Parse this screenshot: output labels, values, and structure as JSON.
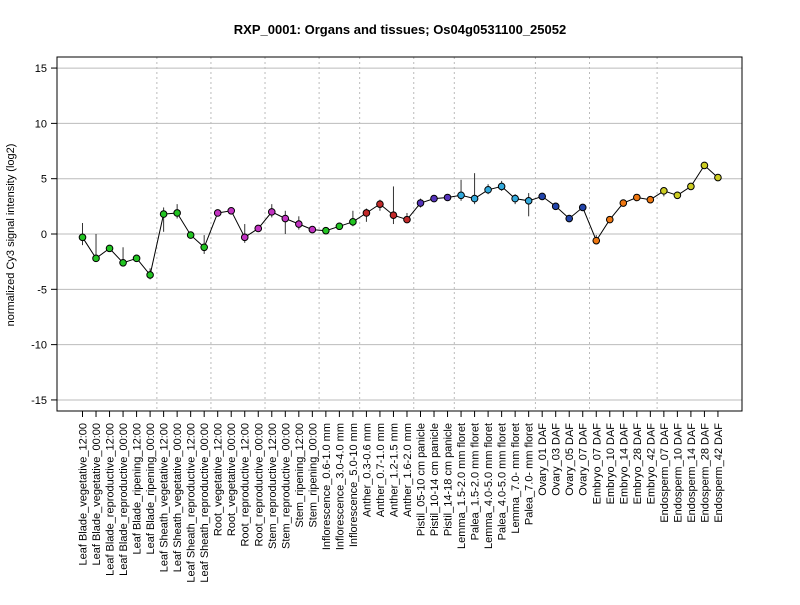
{
  "chart_data": {
    "type": "line",
    "title": "RXP_0001: Organs and tissues; Os04g0531100_25052",
    "xlabel": "",
    "ylabel": "normalized Cy3 signal intensity (log2)",
    "ylim": [
      -16,
      16
    ],
    "yticks": [
      -15,
      -10,
      -5,
      0,
      5,
      10,
      15
    ],
    "grid": true,
    "categories": [
      "Leaf Blade_vegetative_12:00",
      "Leaf Blade_vegetative_00:00",
      "Leaf Blade_reproductive_12:00",
      "Leaf Blade_reproductive_00:00",
      "Leaf Blade_ripening_12:00",
      "Leaf Blade_ripening_00:00",
      "Leaf Sheath_vegetative_12:00",
      "Leaf Sheath_vegetative_00:00",
      "Leaf Sheath_reproductive_12:00",
      "Leaf Sheath_reproductive_00:00",
      "Root_vegetative_12:00",
      "Root_vegetative_00:00",
      "Root_reproductive_12:00",
      "Root_reproductive_00:00",
      "Stem_reproductive_12:00",
      "Stem_reproductive_00:00",
      "Stem_ripening_12:00",
      "Stem_ripening_00:00",
      "Inflorescence_0.6-1.0 mm",
      "Inflorescence_3.0-4.0 mm",
      "Inflorescence_5.0-10 mm",
      "Anther_0.3-0.6 mm",
      "Anther_0.7-1.0 mm",
      "Anther_1.2-1.5 mm",
      "Anther_1.6-2.0 mm",
      "Pistil_05-10 cm panicle",
      "Pistil_10-14 cm panicle",
      "Pistil_14-18 cm panicle",
      "Lemma_1.5-2.0 mm floret",
      "Palea_1.5-2.0 mm floret",
      "Lemma_4.0-5.0 mm floret",
      "Palea_4.0-5.0 mm floret",
      "Lemma_7.0- mm floret",
      "Palea_7.0- mm floret",
      "Ovary_01 DAF",
      "Ovary_03 DAF",
      "Ovary_05 DAF",
      "Ovary_07 DAF",
      "Embryo_07 DAF",
      "Embryo_10 DAF",
      "Embryo_14 DAF",
      "Embryo_28 DAF",
      "Embryo_42 DAF",
      "Endosperm_07 DAF",
      "Endosperm_10 DAF",
      "Endosperm_14 DAF",
      "Endosperm_28 DAF",
      "Endosperm_42 DAF"
    ],
    "values": [
      -0.3,
      -2.2,
      -1.3,
      -2.6,
      -2.2,
      -3.7,
      1.8,
      1.9,
      -0.1,
      -1.2,
      1.9,
      2.1,
      -0.3,
      0.5,
      2.0,
      1.4,
      0.9,
      0.4,
      0.3,
      0.7,
      1.1,
      1.9,
      2.7,
      1.7,
      1.3,
      2.8,
      3.2,
      3.3,
      3.5,
      3.2,
      4.0,
      4.3,
      3.2,
      3.0,
      3.4,
      2.5,
      1.4,
      2.4,
      -0.6,
      1.3,
      2.8,
      3.3,
      3.1,
      3.9,
      3.5,
      4.3,
      6.2,
      5.1
    ],
    "error_low": [
      -1.0,
      -2.4,
      -1.4,
      -2.8,
      -2.3,
      -4.1,
      0.2,
      1.4,
      -0.2,
      -1.8,
      1.7,
      2.0,
      -0.8,
      0.3,
      1.5,
      0.0,
      0.4,
      0.3,
      0.2,
      0.5,
      0.7,
      1.1,
      2.1,
      0.9,
      1.0,
      2.4,
      3.0,
      3.2,
      3.0,
      2.7,
      3.6,
      3.9,
      2.7,
      1.6,
      3.1,
      2.3,
      1.2,
      2.1,
      -0.8,
      1.1,
      2.6,
      3.1,
      2.9,
      3.4,
      3.4,
      4.1,
      5.9,
      4.9
    ],
    "error_high": [
      1.0,
      0.0,
      -1.1,
      -1.2,
      -2.0,
      -3.1,
      2.4,
      2.7,
      0.0,
      -0.1,
      2.0,
      2.2,
      0.9,
      0.7,
      2.7,
      2.1,
      1.6,
      0.6,
      0.4,
      0.9,
      2.1,
      2.3,
      3.1,
      4.3,
      1.9,
      3.2,
      3.5,
      3.5,
      4.9,
      5.5,
      4.5,
      4.8,
      3.6,
      3.7,
      3.7,
      2.8,
      1.6,
      2.7,
      -0.1,
      1.5,
      2.9,
      3.4,
      3.2,
      4.0,
      3.7,
      4.5,
      6.5,
      5.3
    ],
    "colors": [
      "#22c422",
      "#22c422",
      "#22c422",
      "#22c422",
      "#22c422",
      "#22c422",
      "#22c422",
      "#22c422",
      "#22c422",
      "#22c422",
      "#c233c2",
      "#c233c2",
      "#c233c2",
      "#c233c2",
      "#c233c2",
      "#c233c2",
      "#c233c2",
      "#c233c2",
      "#22c422",
      "#22c422",
      "#22c422",
      "#c22a2a",
      "#c22a2a",
      "#c22a2a",
      "#c22a2a",
      "#5533bb",
      "#5533bb",
      "#5533bb",
      "#33aadd",
      "#33aadd",
      "#33aadd",
      "#33aadd",
      "#33aadd",
      "#33aadd",
      "#2244aa",
      "#2244aa",
      "#2244aa",
      "#2244aa",
      "#ee7711",
      "#ee7711",
      "#ee7711",
      "#ee7711",
      "#ee7711",
      "#cccc22",
      "#cccc22",
      "#cccc22",
      "#cccc22",
      "#cccc22"
    ],
    "group_separators_after": [
      5,
      9,
      13,
      17,
      20,
      24,
      27,
      33,
      37,
      42
    ]
  }
}
